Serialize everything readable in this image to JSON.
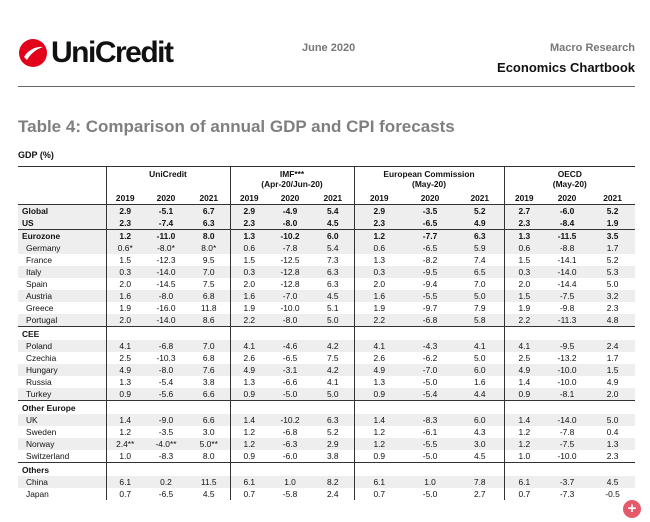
{
  "header": {
    "brand": "UniCredit",
    "date": "June 2020",
    "subtitle": "Macro Research",
    "title": "Economics Chartbook"
  },
  "table_title": "Table 4: Comparison of annual GDP and CPI forecasts",
  "section_label": "GDP (%)",
  "groups": [
    {
      "name": "UniCredit",
      "sub": ""
    },
    {
      "name": "IMF***",
      "sub": "(Apr-20/Jun-20)"
    },
    {
      "name": "European Commission",
      "sub": "(May-20)"
    },
    {
      "name": "OECD",
      "sub": "(May-20)"
    }
  ],
  "years": [
    "2019",
    "2020",
    "2021"
  ],
  "rows": [
    {
      "type": "data",
      "label": "Global",
      "shade": true,
      "bold": true,
      "vals": [
        "2.9",
        "-5.1",
        "6.7",
        "2.9",
        "-4.9",
        "5.4",
        "2.9",
        "-3.5",
        "5.2",
        "2.7",
        "-6.0",
        "5.2"
      ]
    },
    {
      "type": "data",
      "label": "US",
      "shade": true,
      "bold": true,
      "bline": true,
      "vals": [
        "2.3",
        "-7.4",
        "6.3",
        "2.3",
        "-8.0",
        "4.5",
        "2.3",
        "-6.5",
        "4.9",
        "2.3",
        "-8.4",
        "1.9"
      ]
    },
    {
      "type": "data",
      "label": "Eurozone",
      "shade": true,
      "bold": true,
      "vals": [
        "1.2",
        "-11.0",
        "8.0",
        "1.3",
        "-10.2",
        "6.0",
        "1.2",
        "-7.7",
        "6.3",
        "1.3",
        "-11.5",
        "3.5"
      ]
    },
    {
      "type": "data",
      "label": "Germany",
      "indent": true,
      "shade": true,
      "vals": [
        "0.6*",
        "-8.0*",
        "8.0*",
        "0.6",
        "-7.8",
        "5.4",
        "0.6",
        "-6.5",
        "5.9",
        "0.6",
        "-8.8",
        "1.7"
      ]
    },
    {
      "type": "data",
      "label": "France",
      "indent": true,
      "vals": [
        "1.5",
        "-12.3",
        "9.5",
        "1.5",
        "-12.5",
        "7.3",
        "1.3",
        "-8.2",
        "7.4",
        "1.5",
        "-14.1",
        "5.2"
      ]
    },
    {
      "type": "data",
      "label": "Italy",
      "indent": true,
      "shade": true,
      "vals": [
        "0.3",
        "-14.0",
        "7.0",
        "0.3",
        "-12.8",
        "6.3",
        "0.3",
        "-9.5",
        "6.5",
        "0.3",
        "-14.0",
        "5.3"
      ]
    },
    {
      "type": "data",
      "label": "Spain",
      "indent": true,
      "vals": [
        "2.0",
        "-14.5",
        "7.5",
        "2.0",
        "-12.8",
        "6.3",
        "2.0",
        "-9.4",
        "7.0",
        "2.0",
        "-14.4",
        "5.0"
      ]
    },
    {
      "type": "data",
      "label": "Austria",
      "indent": true,
      "shade": true,
      "vals": [
        "1.6",
        "-8.0",
        "6.8",
        "1.6",
        "-7.0",
        "4.5",
        "1.6",
        "-5.5",
        "5.0",
        "1.5",
        "-7.5",
        "3.2"
      ]
    },
    {
      "type": "data",
      "label": "Greece",
      "indent": true,
      "vals": [
        "1.9",
        "-16.0",
        "11.8",
        "1.9",
        "-10.0",
        "5.1",
        "1.9",
        "-9.7",
        "7.9",
        "1.9",
        "-9.8",
        "2.3"
      ]
    },
    {
      "type": "data",
      "label": "Portugal",
      "indent": true,
      "shade": true,
      "bline": true,
      "vals": [
        "2.0",
        "-14.0",
        "8.6",
        "2.2",
        "-8.0",
        "5.0",
        "2.2",
        "-6.8",
        "5.8",
        "2.2",
        "-11.3",
        "4.8"
      ]
    },
    {
      "type": "section",
      "label": "CEE"
    },
    {
      "type": "data",
      "label": "Poland",
      "indent": true,
      "shade": true,
      "vals": [
        "4.1",
        "-6.8",
        "7.0",
        "4.1",
        "-4.6",
        "4.2",
        "4.1",
        "-4.3",
        "4.1",
        "4.1",
        "-9.5",
        "2.4"
      ]
    },
    {
      "type": "data",
      "label": "Czechia",
      "indent": true,
      "vals": [
        "2.5",
        "-10.3",
        "6.8",
        "2.6",
        "-6.5",
        "7.5",
        "2.6",
        "-6.2",
        "5.0",
        "2.5",
        "-13.2",
        "1.7"
      ]
    },
    {
      "type": "data",
      "label": "Hungary",
      "indent": true,
      "shade": true,
      "vals": [
        "4.9",
        "-8.0",
        "7.6",
        "4.9",
        "-3.1",
        "4.2",
        "4.9",
        "-7.0",
        "6.0",
        "4.9",
        "-10.0",
        "1.5"
      ]
    },
    {
      "type": "data",
      "label": "Russia",
      "indent": true,
      "vals": [
        "1.3",
        "-5.4",
        "3.8",
        "1.3",
        "-6.6",
        "4.1",
        "1.3",
        "-5.0",
        "1.6",
        "1.4",
        "-10.0",
        "4.9"
      ]
    },
    {
      "type": "data",
      "label": "Turkey",
      "indent": true,
      "shade": true,
      "bline": true,
      "vals": [
        "0.9",
        "-5.6",
        "6.6",
        "0.9",
        "-5.0",
        "5.0",
        "0.9",
        "-5.4",
        "4.4",
        "0.9",
        "-8.1",
        "2.0"
      ]
    },
    {
      "type": "section",
      "label": "Other Europe"
    },
    {
      "type": "data",
      "label": "UK",
      "indent": true,
      "shade": true,
      "vals": [
        "1.4",
        "-9.0",
        "6.6",
        "1.4",
        "-10.2",
        "6.3",
        "1.4",
        "-8.3",
        "6.0",
        "1.4",
        "-14.0",
        "5.0"
      ]
    },
    {
      "type": "data",
      "label": "Sweden",
      "indent": true,
      "vals": [
        "1.2",
        "-3.5",
        "3.0",
        "1.2",
        "-6.8",
        "5.2",
        "1.2",
        "-6.1",
        "4.3",
        "1.2",
        "-7.8",
        "0.4"
      ]
    },
    {
      "type": "data",
      "label": "Norway",
      "indent": true,
      "shade": true,
      "vals": [
        "2.4**",
        "-4.0**",
        "5.0**",
        "1.2",
        "-6.3",
        "2.9",
        "1.2",
        "-5.5",
        "3.0",
        "1.2",
        "-7.5",
        "1.3"
      ]
    },
    {
      "type": "data",
      "label": "Switzerland",
      "indent": true,
      "bline": true,
      "vals": [
        "1.0",
        "-8.3",
        "8.0",
        "0.9",
        "-6.0",
        "3.8",
        "0.9",
        "-5.0",
        "4.5",
        "1.0",
        "-10.0",
        "2.3"
      ]
    },
    {
      "type": "section",
      "label": "Others"
    },
    {
      "type": "data",
      "label": "China",
      "indent": true,
      "shade": true,
      "vals": [
        "6.1",
        "0.2",
        "11.5",
        "6.1",
        "1.0",
        "8.2",
        "6.1",
        "1.0",
        "7.8",
        "6.1",
        "-3.7",
        "4.5"
      ]
    },
    {
      "type": "data",
      "label": "Japan",
      "indent": true,
      "vals": [
        "0.7",
        "-6.5",
        "4.5",
        "0.7",
        "-5.8",
        "2.4",
        "0.7",
        "-5.0",
        "2.7",
        "0.7",
        "-7.3",
        "-0.5"
      ]
    }
  ],
  "colors": {
    "brand_red": "#e2001a",
    "title_grey": "#7f7f7f",
    "row_shade": "#eeeeee"
  },
  "zoom_icon": "plus-circle-icon"
}
